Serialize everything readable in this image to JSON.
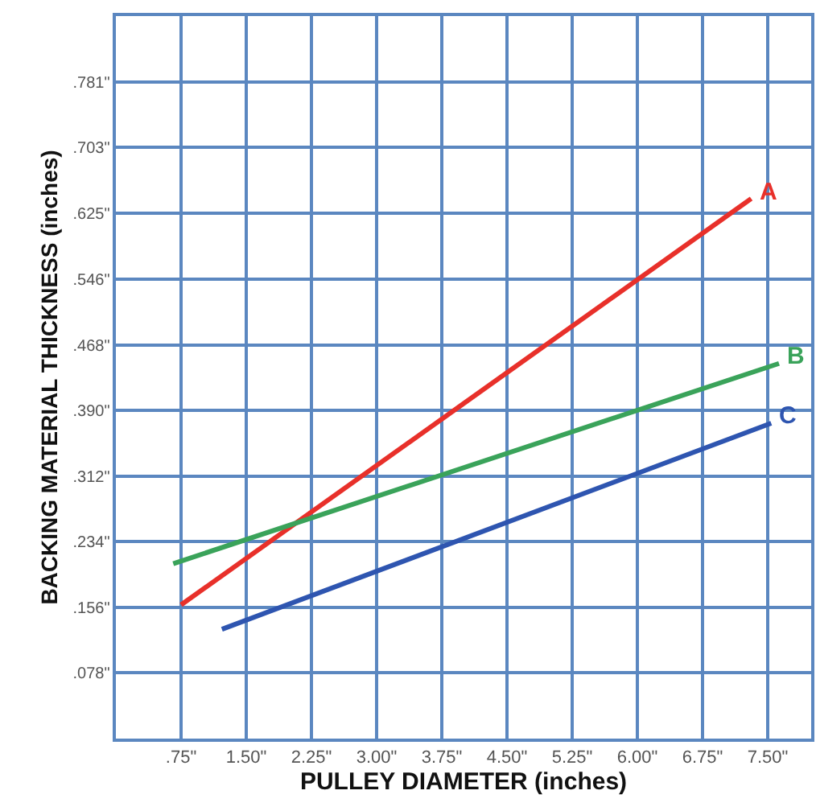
{
  "chart_data": {
    "type": "line",
    "xlabel": "PULLEY DIAMETER (inches)",
    "ylabel": "BACKING MATERIAL THICKNESS (inches)",
    "series": [
      {
        "name": "A",
        "color": "#e8302a",
        "x": [
          0.75,
          7.31
        ],
        "values": [
          0.159,
          0.642
        ]
      },
      {
        "name": "B",
        "color": "#3aa35a",
        "x": [
          0.66,
          7.63
        ],
        "values": [
          0.208,
          0.446
        ]
      },
      {
        "name": "C",
        "color": "#2e55b0",
        "x": [
          1.22,
          7.54
        ],
        "values": [
          0.13,
          0.375
        ]
      }
    ],
    "xlim": [
      0,
      8.0
    ],
    "ylim": [
      0,
      0.859
    ],
    "xticks": [
      {
        "value": 0.75,
        "label": ".75\""
      },
      {
        "value": 1.5,
        "label": "1.50\""
      },
      {
        "value": 2.25,
        "label": "2.25\""
      },
      {
        "value": 3.0,
        "label": "3.00\""
      },
      {
        "value": 3.75,
        "label": "3.75\""
      },
      {
        "value": 4.5,
        "label": "4.50\""
      },
      {
        "value": 5.25,
        "label": "5.25\""
      },
      {
        "value": 6.0,
        "label": "6.00\""
      },
      {
        "value": 6.75,
        "label": "6.75\""
      },
      {
        "value": 7.5,
        "label": "7.50\""
      }
    ],
    "yticks": [
      {
        "value": 0.078,
        "label": ".078\""
      },
      {
        "value": 0.156,
        "label": ".156\""
      },
      {
        "value": 0.234,
        "label": ".234\""
      },
      {
        "value": 0.312,
        "label": ".312\""
      },
      {
        "value": 0.39,
        "label": ".390\""
      },
      {
        "value": 0.468,
        "label": ".468\""
      },
      {
        "value": 0.546,
        "label": ".546\""
      },
      {
        "value": 0.625,
        "label": ".625\""
      },
      {
        "value": 0.703,
        "label": ".703\""
      },
      {
        "value": 0.781,
        "label": ".781\""
      }
    ],
    "grid": true,
    "legend": false,
    "marker": "none",
    "line_style": "solid"
  }
}
